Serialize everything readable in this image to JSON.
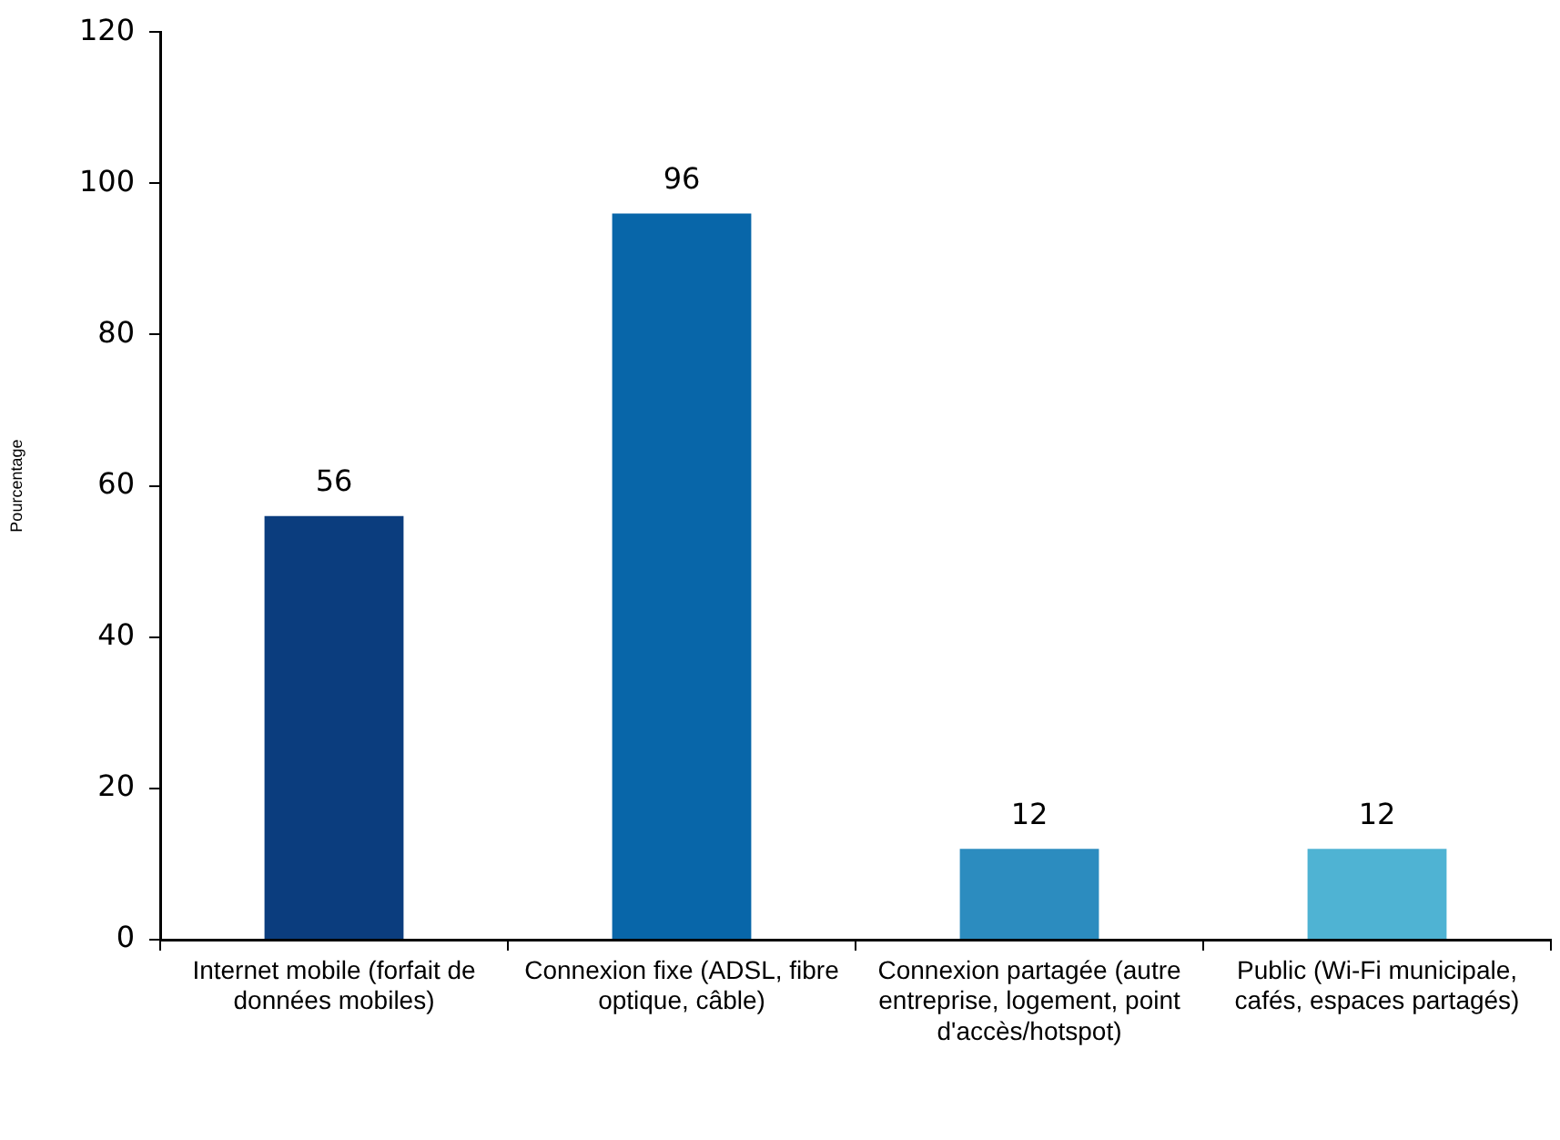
{
  "chart_data": {
    "type": "bar",
    "ylabel": "Pourcentage",
    "categories": [
      "Internet mobile (forfait de données mobiles)",
      "Connexion fixe (ADSL, fibre optique, câble)",
      "Connexion partagée (autre entreprise, logement, point d'accès/hotspot)",
      "Public (Wi-Fi municipale, cafés, espaces partagés)"
    ],
    "values": [
      56,
      96,
      12,
      12
    ],
    "colors": [
      "#0b3d7e",
      "#0866a9",
      "#2c8cbf",
      "#4fb3d3"
    ],
    "ylim": [
      0,
      120
    ],
    "yticks": [
      0,
      20,
      40,
      60,
      80,
      100,
      120
    ],
    "data_labels": true,
    "grid": false,
    "legend": false
  }
}
